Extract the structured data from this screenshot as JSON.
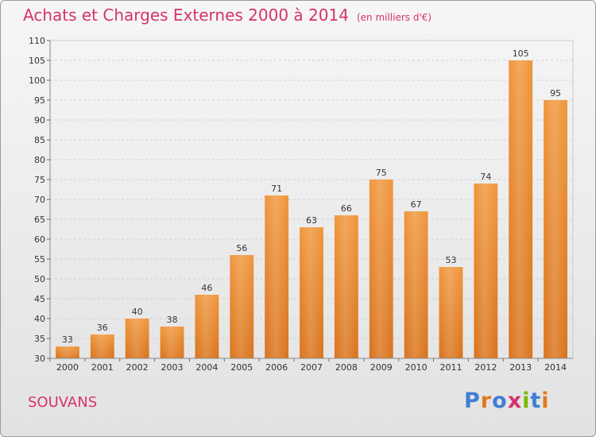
{
  "header": {
    "title": "Achats et Charges Externes 2000 à 2014",
    "unit": "(en milliers d'€)"
  },
  "commune": "SOUVANS",
  "logo": {
    "letters": [
      "P",
      "r",
      "o",
      "x",
      "i",
      "t",
      "i"
    ],
    "colors": [
      "#3f7fd4",
      "#e07b1a",
      "#3f7fd4",
      "#d6336c",
      "#7ab800",
      "#3f7fd4",
      "#e07b1a"
    ]
  },
  "chart_data": {
    "type": "bar",
    "title": "Achats et Charges Externes 2000 à 2014",
    "subtitle": "(en milliers d'€)",
    "categories": [
      "2000",
      "2001",
      "2002",
      "2003",
      "2004",
      "2005",
      "2006",
      "2007",
      "2008",
      "2009",
      "2010",
      "2011",
      "2012",
      "2013",
      "2014"
    ],
    "values": [
      33,
      36,
      40,
      38,
      46,
      56,
      71,
      63,
      66,
      75,
      67,
      53,
      74,
      105,
      95
    ],
    "ylim": [
      30,
      110
    ],
    "yticks": [
      30,
      35,
      40,
      45,
      50,
      55,
      60,
      65,
      70,
      75,
      80,
      85,
      90,
      95,
      100,
      105,
      110
    ],
    "grid": true,
    "bar_color": "#f0963c",
    "bar_color_dark": "#d9731c"
  }
}
